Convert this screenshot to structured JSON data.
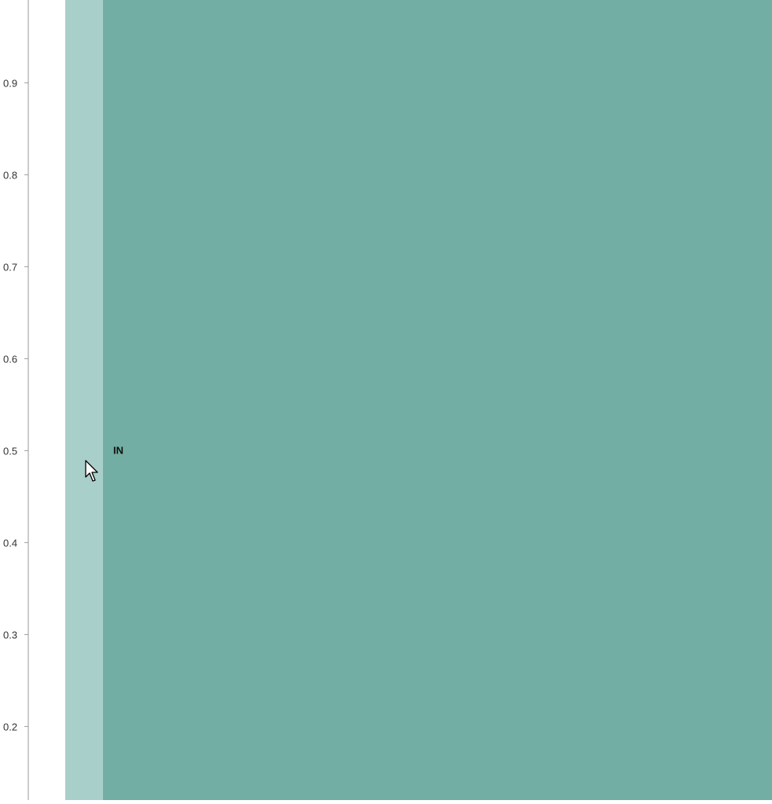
{
  "chart_data": {
    "type": "area",
    "ylim": [
      0.12,
      0.99
    ],
    "y_ticks": [
      0.2,
      0.3,
      0.4,
      0.5,
      0.6,
      0.7,
      0.8,
      0.9
    ],
    "y_tick_labels": [
      "0.2",
      "0.3",
      "0.4",
      "0.5",
      "0.6",
      "0.7",
      "0.8",
      "0.9"
    ],
    "grid": false,
    "series": [
      {
        "label": "IN",
        "color": "#72aea3",
        "highlight_color": "#a9cfca",
        "label_y": 0.5
      }
    ]
  }
}
